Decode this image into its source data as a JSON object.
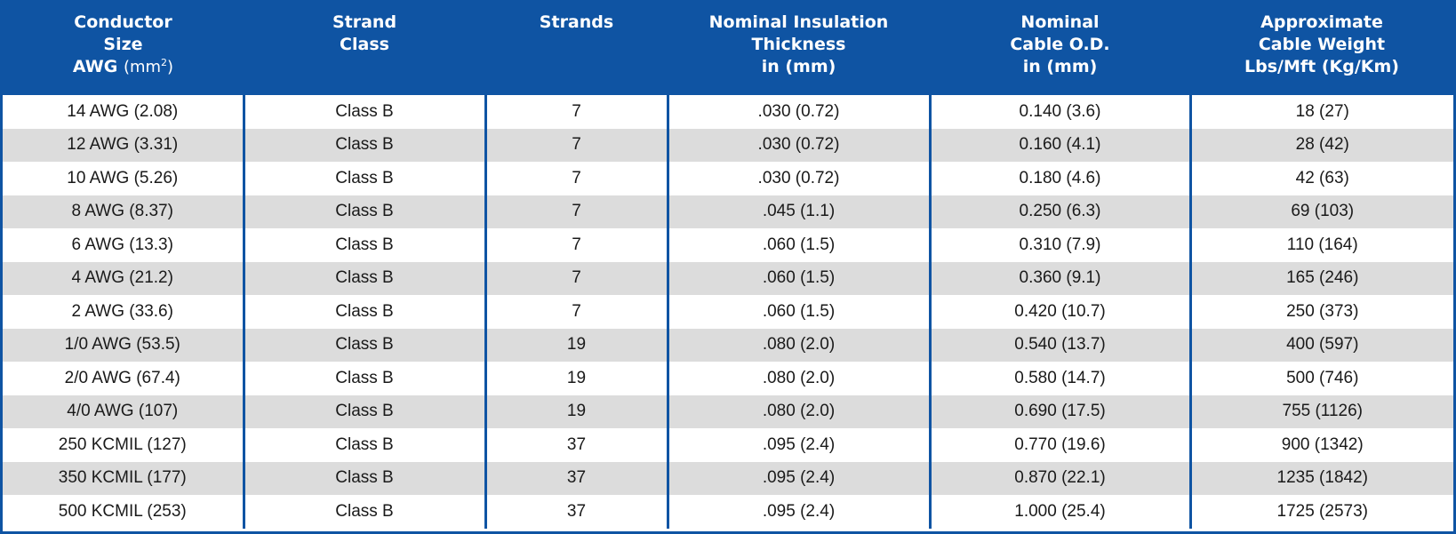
{
  "colors": {
    "header_bg": "#0f54a3",
    "header_text": "#ffffff",
    "row_alt_bg": "#dcdcdc",
    "row_bg": "#ffffff",
    "divider": "#0f54a3"
  },
  "headers": {
    "conductor_size": {
      "line1": "Conductor",
      "line2": "Size",
      "line3_main": "AWG",
      "line3_unit": "(mm",
      "line3_sup": "2",
      "line3_close": ")"
    },
    "strand_class": {
      "line1": "Strand",
      "line2": "Class"
    },
    "strands": {
      "line1": "Strands"
    },
    "insulation": {
      "line1": "Nominal Insulation",
      "line2": "Thickness",
      "line3": "in (mm)"
    },
    "cable_od": {
      "line1": "Nominal",
      "line2": "Cable O.D.",
      "line3": "in (mm)"
    },
    "weight": {
      "line1": "Approximate",
      "line2": "Cable Weight",
      "line3": "Lbs/Mft (Kg/Km)"
    }
  },
  "rows": [
    {
      "size": "14 AWG (2.08)",
      "strand_class": "Class B",
      "strands": "7",
      "insulation": ".030  (0.72)",
      "od": "0.140  (3.6)",
      "weight": "18  (27)"
    },
    {
      "size": "12 AWG (3.31)",
      "strand_class": "Class B",
      "strands": "7",
      "insulation": ".030  (0.72)",
      "od": "0.160  (4.1)",
      "weight": "28  (42)"
    },
    {
      "size": "10 AWG (5.26)",
      "strand_class": "Class B",
      "strands": "7",
      "insulation": ".030  (0.72)",
      "od": "0.180  (4.6)",
      "weight": "42  (63)"
    },
    {
      "size": "8 AWG (8.37)",
      "strand_class": "Class B",
      "strands": "7",
      "insulation": ".045  (1.1)",
      "od": "0.250  (6.3)",
      "weight": "69  (103)"
    },
    {
      "size": "6 AWG (13.3)",
      "strand_class": "Class B",
      "strands": "7",
      "insulation": ".060  (1.5)",
      "od": "0.310  (7.9)",
      "weight": "110  (164)"
    },
    {
      "size": "4 AWG (21.2)",
      "strand_class": "Class B",
      "strands": "7",
      "insulation": ".060  (1.5)",
      "od": "0.360  (9.1)",
      "weight": "165  (246)"
    },
    {
      "size": "2 AWG (33.6)",
      "strand_class": "Class B",
      "strands": "7",
      "insulation": ".060  (1.5)",
      "od": "0.420  (10.7)",
      "weight": "250  (373)"
    },
    {
      "size": "1/0 AWG (53.5)",
      "strand_class": "Class B",
      "strands": "19",
      "insulation": ".080  (2.0)",
      "od": "0.540  (13.7)",
      "weight": "400  (597)"
    },
    {
      "size": "2/0 AWG (67.4)",
      "strand_class": "Class B",
      "strands": "19",
      "insulation": ".080  (2.0)",
      "od": "0.580  (14.7)",
      "weight": "500  (746)"
    },
    {
      "size": "4/0 AWG (107)",
      "strand_class": "Class B",
      "strands": "19",
      "insulation": ".080  (2.0)",
      "od": "0.690  (17.5)",
      "weight": "755  (1126)"
    },
    {
      "size": "250 KCMIL (127)",
      "strand_class": "Class B",
      "strands": "37",
      "insulation": ".095  (2.4)",
      "od": "0.770  (19.6)",
      "weight": "900  (1342)"
    },
    {
      "size": "350 KCMIL (177)",
      "strand_class": "Class B",
      "strands": "37",
      "insulation": ".095  (2.4)",
      "od": "0.870  (22.1)",
      "weight": "1235  (1842)"
    },
    {
      "size": "500 KCMIL (253)",
      "strand_class": "Class B",
      "strands": "37",
      "insulation": ".095  (2.4)",
      "od": "1.000  (25.4)",
      "weight": "1725  (2573)"
    }
  ]
}
